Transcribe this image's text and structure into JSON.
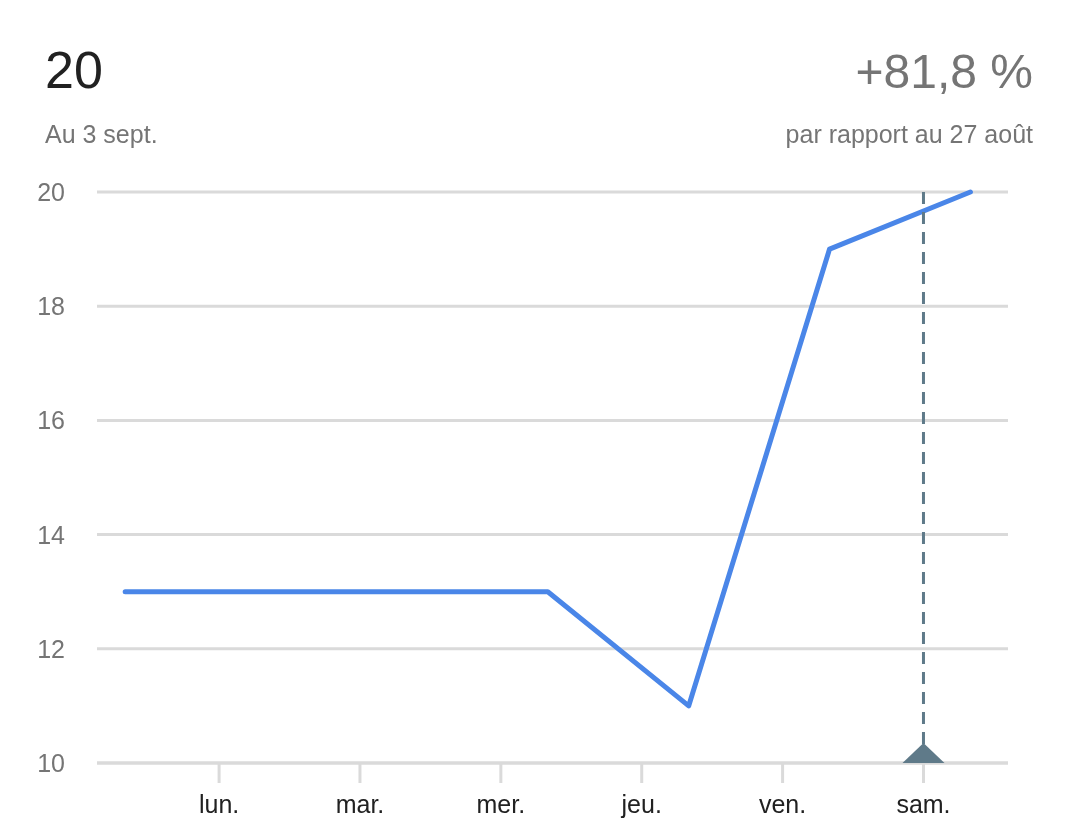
{
  "chart_data": {
    "type": "line",
    "title": "20",
    "subtitle": "Au 3 sept.",
    "annotations": [
      "+81,8 %",
      "par rapport au 27 août"
    ],
    "categories": [
      null,
      null,
      "lun.",
      null,
      null,
      "mar.",
      null,
      null,
      "mer.",
      null,
      null,
      "jeu.",
      null,
      null,
      "ven.",
      null,
      null,
      "sam.",
      null
    ],
    "series": [
      {
        "color": "#4a86e8",
        "values": [
          13,
          null,
          null,
          13,
          null,
          null,
          13,
          null,
          null,
          13,
          null,
          null,
          11,
          null,
          null,
          19,
          null,
          null,
          20
        ]
      }
    ],
    "ylim": [
      10,
      20
    ],
    "yticks": [
      10,
      12,
      14,
      16,
      18,
      20
    ],
    "grid": "y",
    "marker": "none",
    "line_style": "solid",
    "ref_lines": [
      {
        "axis": "x",
        "value": "sam.",
        "color": "#5f7a89",
        "line_style": "dashed"
      }
    ]
  }
}
